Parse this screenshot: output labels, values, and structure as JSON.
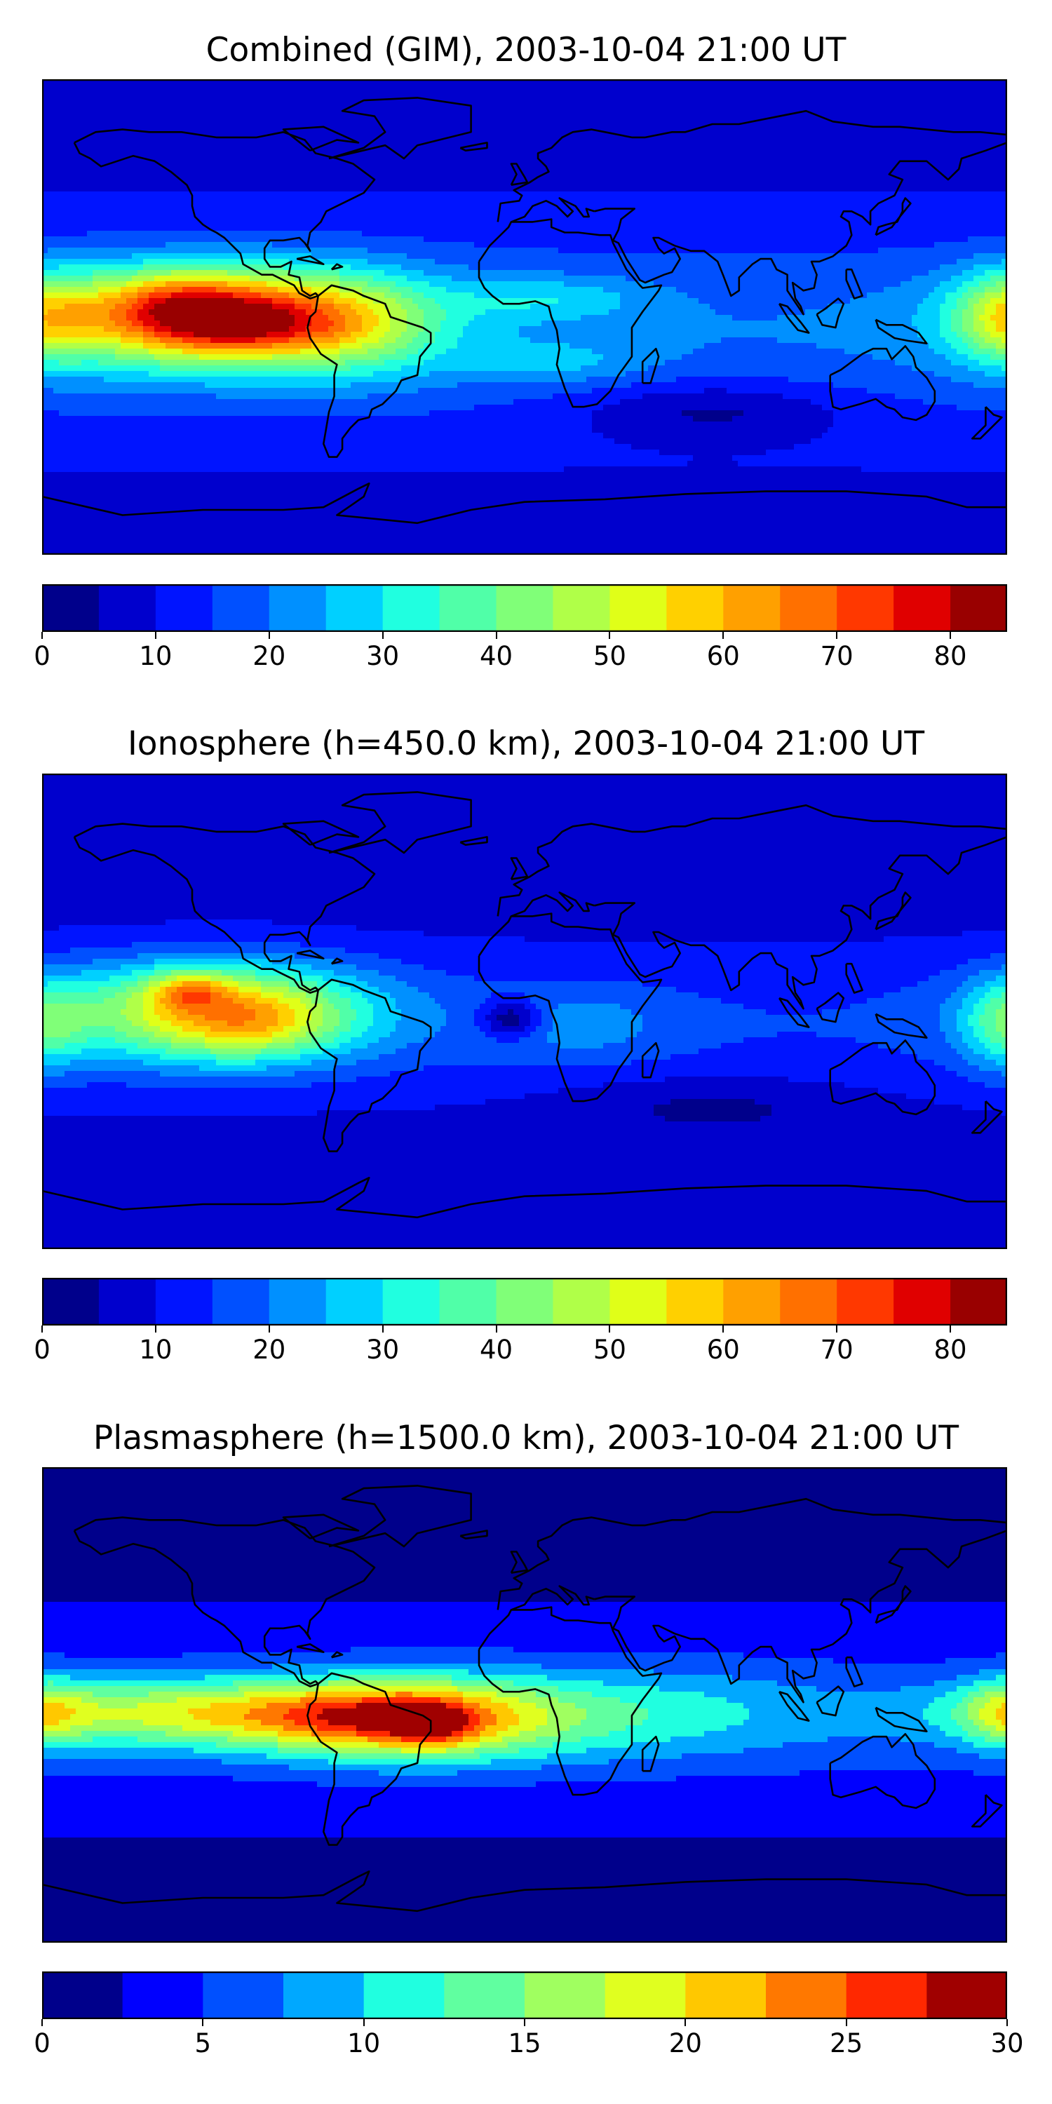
{
  "chart_data": [
    {
      "type": "heatmap",
      "title": "Combined (GIM), 2003-10-04 21:00 UT",
      "colorbar": {
        "min": 0,
        "max": 85,
        "step": 5,
        "ticks": [
          0,
          10,
          20,
          30,
          40,
          50,
          60,
          70,
          80
        ]
      },
      "features": [
        {
          "name": "anomaly-peak-americas",
          "lon": -118,
          "lat": -3,
          "value": 78
        },
        {
          "name": "anomaly-band-americas",
          "lon": -105,
          "lat": 2,
          "value": 65
        },
        {
          "name": "anomaly-halo-americas",
          "lon": -110,
          "lat": 2,
          "value": 45
        },
        {
          "name": "africa-crest-north",
          "lon": 10,
          "lat": 8,
          "value": 30
        },
        {
          "name": "africa-crest-south",
          "lon": 10,
          "lat": -18,
          "value": 27
        },
        {
          "name": "pacific-west-edge",
          "lon": 180,
          "lat": 0,
          "value": 40
        },
        {
          "name": "polar-low-north",
          "lon": 60,
          "lat": 75,
          "value": 5
        },
        {
          "name": "polar-low-south",
          "lon": 60,
          "lat": -70,
          "value": 7
        }
      ]
    },
    {
      "type": "heatmap",
      "title": "Ionosphere  (h=450.0 km), 2003-10-04 21:00 UT",
      "colorbar": {
        "min": 0,
        "max": 85,
        "step": 5,
        "ticks": [
          0,
          10,
          20,
          30,
          40,
          50,
          60,
          70,
          80
        ]
      },
      "features": [
        {
          "name": "anomaly-peak-americas",
          "lon": -125,
          "lat": 8,
          "value": 66
        },
        {
          "name": "anomaly-band-americas",
          "lon": -110,
          "lat": -5,
          "value": 56
        },
        {
          "name": "anomaly-halo-americas",
          "lon": -115,
          "lat": 0,
          "value": 40
        },
        {
          "name": "atlantic-hole",
          "lon": -5,
          "lat": -3,
          "value": 3
        },
        {
          "name": "africa-crest",
          "lon": 20,
          "lat": -5,
          "value": 22
        },
        {
          "name": "pacific-west-edge",
          "lon": 180,
          "lat": -5,
          "value": 32
        },
        {
          "name": "polar-low-north",
          "lon": 60,
          "lat": 75,
          "value": 3
        },
        {
          "name": "polar-low-south",
          "lon": 60,
          "lat": -70,
          "value": 5
        }
      ]
    },
    {
      "type": "heatmap",
      "title": "Plasmasphere (h=1500.0 km), 2003-10-04 21:00 UT",
      "colorbar": {
        "min": 0,
        "max": 30,
        "step": 2.5,
        "ticks": [
          0,
          5,
          10,
          15,
          20,
          25,
          30
        ]
      },
      "features": [
        {
          "name": "peak-brazil",
          "lon": -35,
          "lat": -8,
          "value": 26
        },
        {
          "name": "band-atlantic",
          "lon": -40,
          "lat": -5,
          "value": 20
        },
        {
          "name": "band-pacific",
          "lon": -130,
          "lat": -3,
          "value": 18
        },
        {
          "name": "band-halo",
          "lon": -70,
          "lat": -5,
          "value": 13
        },
        {
          "name": "africa-indian",
          "lon": 60,
          "lat": -5,
          "value": 9
        },
        {
          "name": "pacific-west-edge",
          "lon": 180,
          "lat": -3,
          "value": 14
        },
        {
          "name": "polar-low-north",
          "lon": 60,
          "lat": 75,
          "value": 2
        },
        {
          "name": "polar-low-south",
          "lon": 60,
          "lat": -70,
          "value": 2
        }
      ]
    }
  ]
}
